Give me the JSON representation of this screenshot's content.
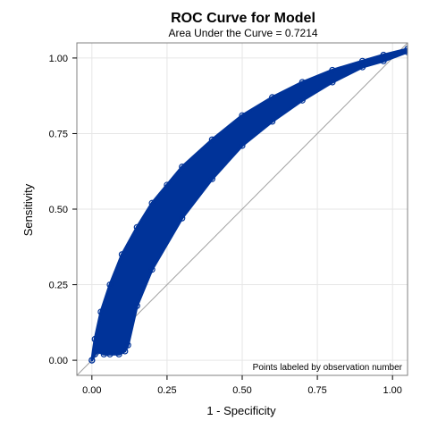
{
  "chart_data": {
    "type": "line",
    "title": "ROC Curve for Model",
    "subtitle": "Area Under the Curve = 0.7214",
    "xlabel": "1 - Specificity",
    "ylabel": "Sensitivity",
    "xlim": [
      -0.05,
      1.05
    ],
    "ylim": [
      -0.05,
      1.05
    ],
    "x_ticks": [
      0.0,
      0.25,
      0.5,
      0.75,
      1.0
    ],
    "x_tick_labels": [
      "0.00",
      "0.25",
      "0.50",
      "0.75",
      "1.00"
    ],
    "y_ticks": [
      0.0,
      0.25,
      0.5,
      0.75,
      1.0
    ],
    "y_tick_labels": [
      "0.00",
      "0.25",
      "0.50",
      "0.75",
      "1.00"
    ],
    "grid": true,
    "annotation": "Points labeled by observation number",
    "series": [
      {
        "color": "#003399",
        "upper_edge": {
          "x": [
            0.0,
            0.01,
            0.03,
            0.06,
            0.1,
            0.15,
            0.2,
            0.25,
            0.3,
            0.4,
            0.5,
            0.6,
            0.7,
            0.8,
            0.9,
            0.97,
            1.05
          ],
          "y": [
            0.0,
            0.07,
            0.16,
            0.25,
            0.35,
            0.44,
            0.52,
            0.58,
            0.64,
            0.73,
            0.81,
            0.87,
            0.92,
            0.96,
            0.99,
            1.01,
            1.03
          ]
        },
        "lower_edge": {
          "x": [
            0.0,
            0.01,
            0.02,
            0.04,
            0.06,
            0.09,
            0.11,
            0.12,
            0.15,
            0.2,
            0.3,
            0.4,
            0.5,
            0.6,
            0.7,
            0.8,
            0.9,
            0.97,
            1.05
          ],
          "y": [
            0.0,
            0.02,
            0.03,
            0.02,
            0.02,
            0.02,
            0.03,
            0.05,
            0.18,
            0.3,
            0.47,
            0.6,
            0.71,
            0.79,
            0.86,
            0.92,
            0.97,
            0.99,
            1.02
          ]
        }
      }
    ],
    "reference_line": {
      "x": [
        -0.05,
        1.05
      ],
      "y": [
        -0.05,
        1.05
      ],
      "color": "#a0a0a0"
    }
  }
}
